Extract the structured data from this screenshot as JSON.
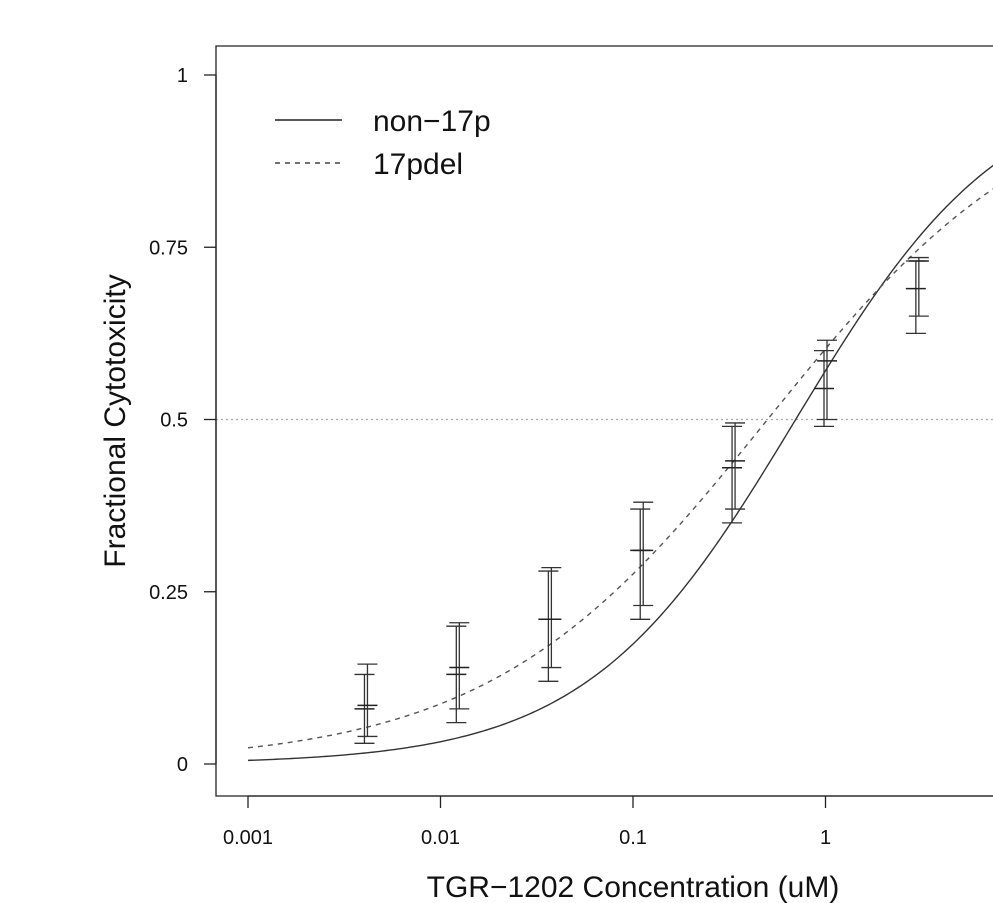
{
  "chart_data": {
    "type": "line",
    "title": "",
    "xlabel": "TGR−1202 Concentration (uM)",
    "ylabel": "Fractional Cytotoxicity",
    "x_scale": "log10",
    "xlim": [
      0.00085,
      8
    ],
    "ylim": [
      -0.04,
      1.04
    ],
    "x_ticks": [
      {
        "value": 0.001,
        "label": "0.001"
      },
      {
        "value": 0.01,
        "label": "0.01"
      },
      {
        "value": 0.1,
        "label": "0.1"
      },
      {
        "value": 1,
        "label": "1"
      }
    ],
    "y_ticks": [
      {
        "value": 0,
        "label": "0"
      },
      {
        "value": 0.25,
        "label": "0.25"
      },
      {
        "value": 0.5,
        "label": "0.5"
      },
      {
        "value": 0.75,
        "label": "0.75"
      },
      {
        "value": 1,
        "label": "1"
      }
    ],
    "reference_line": {
      "y": 0.5,
      "style": "dotted",
      "color": "#aaaaaa"
    },
    "legend": {
      "position": "top-left",
      "entries": [
        "non−17p",
        "17pdel"
      ]
    },
    "series": [
      {
        "name": "non−17p",
        "line_style": "solid",
        "curve": {
          "ic50": 0.7,
          "hill": 0.8
        },
        "points": [
          {
            "x": 0.0041,
            "y": 0.08,
            "err_low": 0.03,
            "err_high": 0.13
          },
          {
            "x": 0.0123,
            "y": 0.13,
            "err_low": 0.06,
            "err_high": 0.2
          },
          {
            "x": 0.037,
            "y": 0.21,
            "err_low": 0.12,
            "err_high": 0.28
          },
          {
            "x": 0.111,
            "y": 0.31,
            "err_low": 0.21,
            "err_high": 0.37
          },
          {
            "x": 0.333,
            "y": 0.43,
            "err_low": 0.35,
            "err_high": 0.49
          },
          {
            "x": 1.0,
            "y": 0.545,
            "err_low": 0.49,
            "err_high": 0.6
          },
          {
            "x": 3.0,
            "y": 0.69,
            "err_low": 0.625,
            "err_high": 0.73
          }
        ]
      },
      {
        "name": "17pdel",
        "line_style": "dashed",
        "curve": {
          "ic50": 0.5,
          "hill": 0.6
        },
        "points": [
          {
            "x": 0.0041,
            "y": 0.085,
            "err_low": 0.04,
            "err_high": 0.145
          },
          {
            "x": 0.0123,
            "y": 0.14,
            "err_low": 0.08,
            "err_high": 0.205
          },
          {
            "x": 0.037,
            "y": 0.21,
            "err_low": 0.14,
            "err_high": 0.285
          },
          {
            "x": 0.111,
            "y": 0.31,
            "err_low": 0.23,
            "err_high": 0.38
          },
          {
            "x": 0.333,
            "y": 0.44,
            "err_low": 0.37,
            "err_high": 0.495
          },
          {
            "x": 1.0,
            "y": 0.585,
            "err_low": 0.5,
            "err_high": 0.615
          },
          {
            "x": 3.0,
            "y": 0.73,
            "err_low": 0.65,
            "err_high": 0.735
          }
        ]
      }
    ]
  }
}
